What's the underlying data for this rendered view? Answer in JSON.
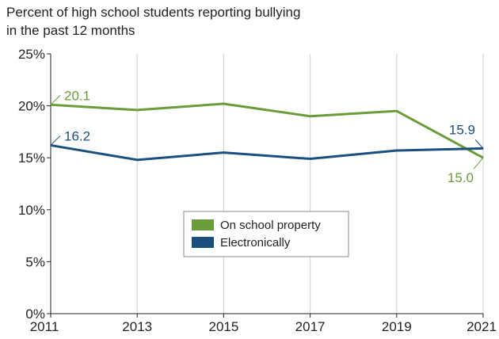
{
  "chart_data": {
    "type": "line",
    "title_lines": [
      "Percent of high school students reporting bullying",
      "in the past 12 months"
    ],
    "x": [
      2011,
      2013,
      2015,
      2017,
      2019,
      2021
    ],
    "x_tick_labels": [
      "2011",
      "2013",
      "2015",
      "2017",
      "2019",
      "2021"
    ],
    "y_tick_labels": [
      "0%",
      "5%",
      "10%",
      "15%",
      "20%",
      "25%"
    ],
    "ylim": [
      0,
      25
    ],
    "y_ticks": [
      0,
      5,
      10,
      15,
      20,
      25
    ],
    "grid": "vertical",
    "legend_placement": "center",
    "series": [
      {
        "name": "On school property",
        "color": "#6a9c3a",
        "values": [
          20.1,
          19.6,
          20.2,
          19.0,
          19.5,
          15.0
        ],
        "labels": [
          {
            "index": 0,
            "text": "20.1"
          },
          {
            "index": 5,
            "text": "15.0"
          }
        ]
      },
      {
        "name": "Electronically",
        "color": "#1b4f80",
        "values": [
          16.2,
          14.8,
          15.5,
          14.9,
          15.7,
          15.9
        ],
        "labels": [
          {
            "index": 0,
            "text": "16.2"
          },
          {
            "index": 5,
            "text": "15.9"
          }
        ]
      }
    ]
  }
}
